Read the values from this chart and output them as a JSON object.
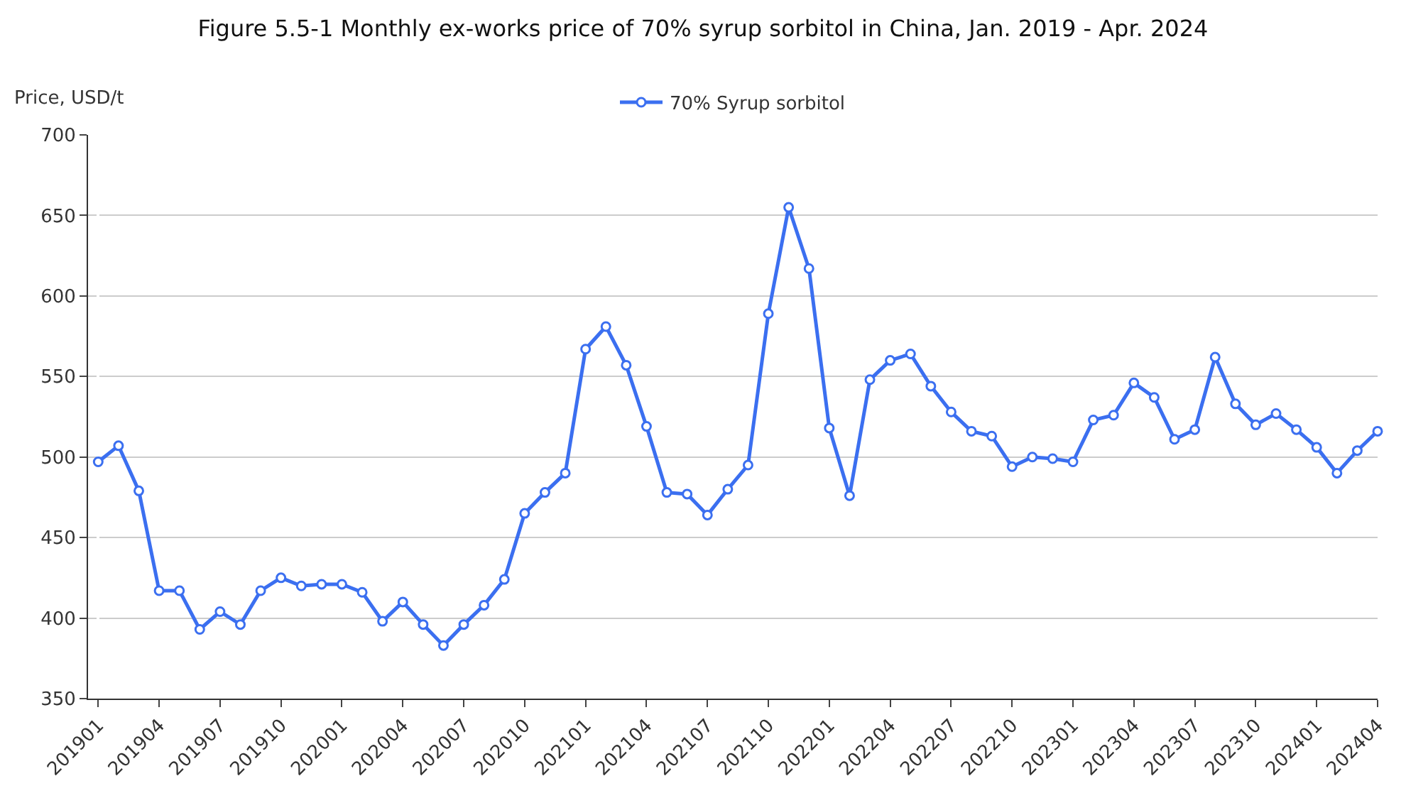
{
  "chart_data": {
    "type": "line",
    "title": "Figure 5.5-1 Monthly ex-works price of 70% syrup sorbitol in China, Jan. 2019 - Apr. 2024",
    "ylabel": "Price, USD/t",
    "categories": [
      "201901",
      null,
      null,
      "201904",
      null,
      null,
      "201907",
      null,
      null,
      "201910",
      null,
      null,
      "202001",
      null,
      null,
      "202004",
      null,
      null,
      "202007",
      null,
      null,
      "202010",
      null,
      null,
      "202101",
      null,
      null,
      "202104",
      null,
      null,
      "202107",
      null,
      null,
      "202110",
      null,
      null,
      "202201",
      null,
      null,
      "202204",
      null,
      null,
      "202207",
      null,
      null,
      "202210",
      null,
      null,
      "202301",
      null,
      null,
      "202304",
      null,
      null,
      "202307",
      null,
      null,
      "202310",
      null,
      null,
      "202401",
      null,
      null,
      "202404"
    ],
    "series": [
      {
        "name": "70% Syrup sorbitol",
        "color": "#3b6ff0",
        "values": [
          497,
          507,
          479,
          417,
          417,
          393,
          404,
          396,
          417,
          425,
          420,
          421,
          421,
          416,
          398,
          410,
          396,
          383,
          396,
          408,
          424,
          465,
          478,
          490,
          567,
          581,
          557,
          519,
          478,
          477,
          464,
          480,
          495,
          589,
          655,
          617,
          518,
          476,
          548,
          560,
          564,
          544,
          528,
          516,
          513,
          494,
          500,
          499,
          497,
          523,
          526,
          546,
          537,
          511,
          517,
          562,
          533,
          520,
          527,
          517,
          506,
          490,
          504,
          516
        ]
      }
    ],
    "ylim": [
      350,
      700
    ],
    "yticks": [
      350,
      400,
      450,
      500,
      550,
      600,
      650,
      700
    ],
    "grid": "y",
    "legend": "top",
    "marker": "circle",
    "line_style": "solid"
  }
}
